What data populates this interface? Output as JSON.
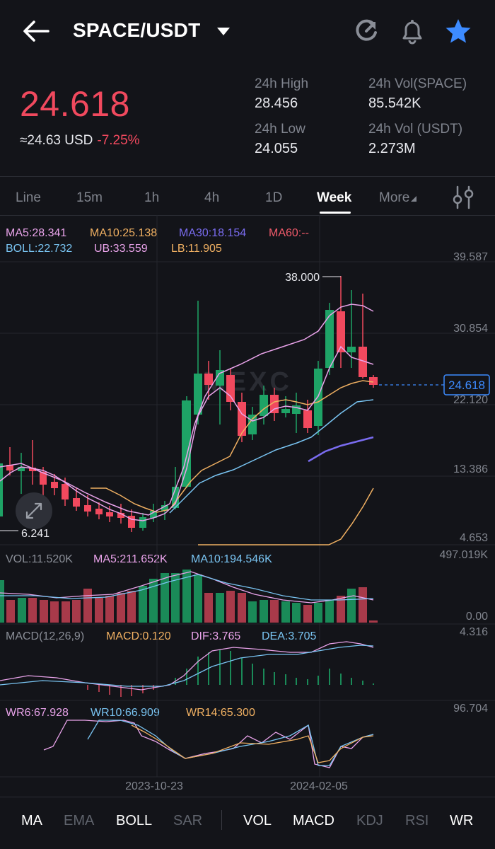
{
  "header": {
    "pair": "SPACE/USDT",
    "icons": [
      "back-arrow-icon",
      "refresh-icon",
      "bell-icon",
      "star-icon"
    ]
  },
  "summary": {
    "last_price": "24.618",
    "usd_approx": "≈24.63 USD",
    "change_pct": "-7.25%",
    "high_label": "24h High",
    "high_value": "28.456",
    "low_label": "24h Low",
    "low_value": "24.055",
    "vol_base_label": "24h Vol(SPACE)",
    "vol_base_value": "85.542K",
    "vol_quote_label": "24h Vol (USDT)",
    "vol_quote_value": "2.273M"
  },
  "tabs": {
    "items": [
      "Line",
      "15m",
      "1h",
      "4h",
      "1D",
      "Week",
      "More"
    ],
    "active": "Week"
  },
  "main_indicators": {
    "ma5": "MA5:28.341",
    "ma10": "MA10:25.138",
    "ma30": "MA30:18.154",
    "ma60": "MA60:--",
    "boll": "BOLL:22.732",
    "ub": "UB:33.559",
    "lb": "LB:11.905"
  },
  "price_axis": {
    "ticks": [
      "39.587",
      "30.854",
      "22.120",
      "13.386",
      "4.653"
    ],
    "current_price_tag": "24.618",
    "high_marker": "38.000",
    "low_marker": "6.241",
    "watermark": "MEXC"
  },
  "volume_panel": {
    "vol": "VOL:11.520K",
    "ma5": "MA5:211.652K",
    "ma10": "MA10:194.546K",
    "max_tick": "497.019K",
    "min_tick": "0.00"
  },
  "macd_panel": {
    "label": "MACD(12,26,9)",
    "macd": "MACD:0.120",
    "dif": "DIF:3.765",
    "dea": "DEA:3.705",
    "max_tick": "4.316"
  },
  "wr_panel": {
    "wr6": "WR6:67.928",
    "wr10": "WR10:66.909",
    "wr14": "WR14:65.300",
    "max_tick": "96.704"
  },
  "time_axis": {
    "labels": [
      "2023-10-23",
      "2024-02-05"
    ]
  },
  "bottom_bar": {
    "main_items": [
      "MA",
      "EMA",
      "BOLL",
      "SAR"
    ],
    "main_active": [
      "MA",
      "BOLL"
    ],
    "sub_items": [
      "VOL",
      "MACD",
      "KDJ",
      "RSI",
      "WR"
    ],
    "sub_active": [
      "VOL",
      "MACD",
      "WR"
    ]
  },
  "colors": {
    "up": "#1ea366",
    "down": "#f1495e",
    "ma5": "#e9a3ea",
    "ma10": "#f0b062",
    "ma30": "#7a6cf0",
    "ma60": "#f05a6a",
    "boll": "#79c4f2",
    "accent": "#3d8bff"
  }
}
